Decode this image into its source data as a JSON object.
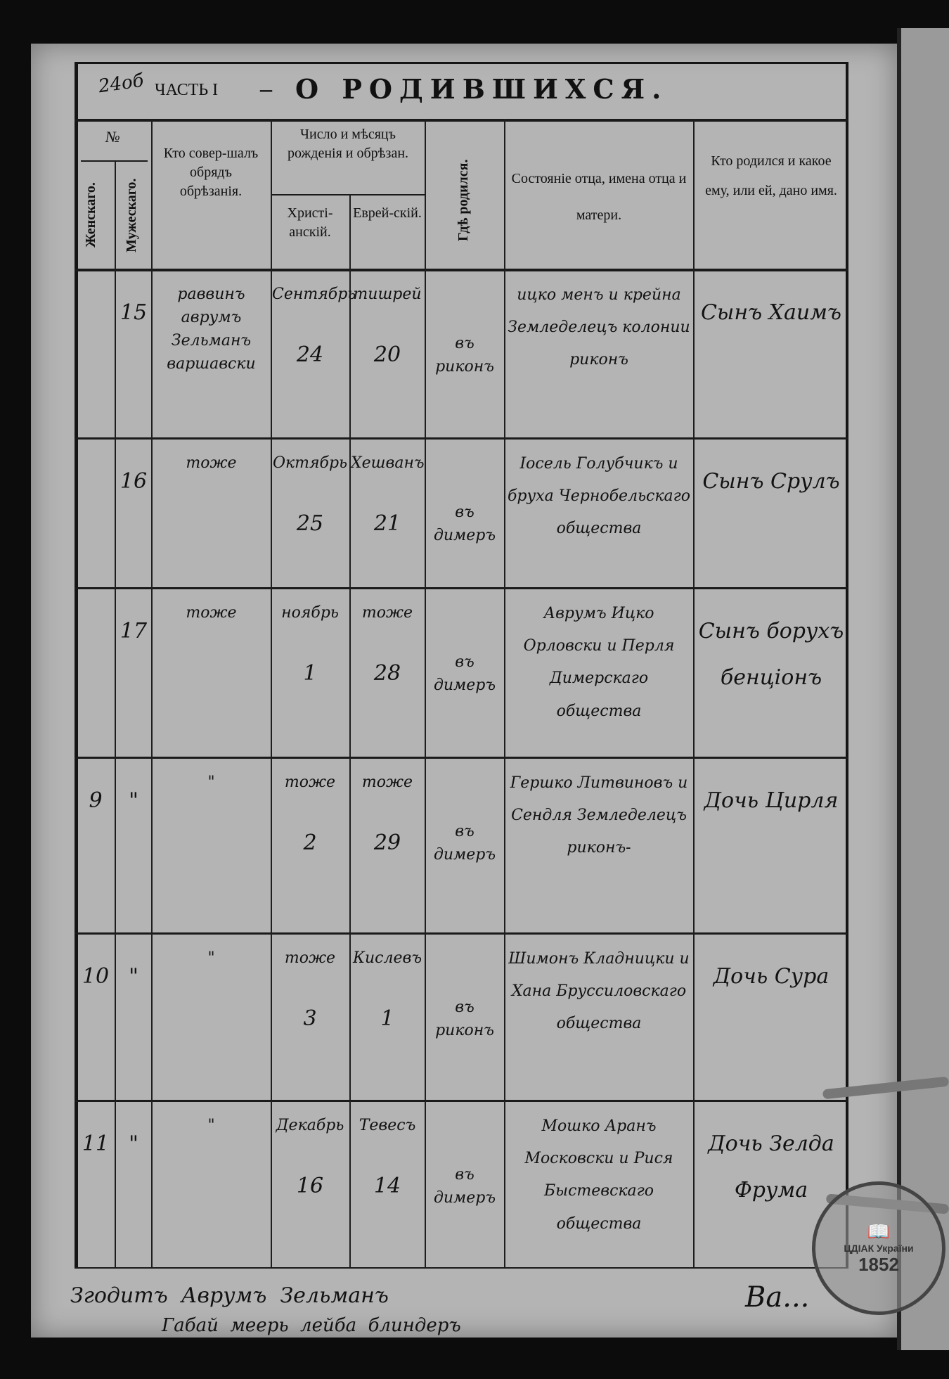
{
  "page_number": "24об",
  "header": {
    "part": "ЧАСТЬ I",
    "dash": "–",
    "title": "О РОДИВШИХСЯ."
  },
  "columns": {
    "number": "№",
    "female": "Женскаго.",
    "male": "Мужескаго.",
    "who_performed": "Кто совер-шалъ обрядъ обрѣзанія.",
    "date": "Число и мѣсяцъ рожденія и обрѣзан.",
    "christian": "Христі-анскій.",
    "jewish": "Еврей-скій.",
    "place": "Гдѣ родился.",
    "parents": "Состояніе отца, имена отца и матери.",
    "child": "Кто родился и какое ему, или ей, дано имя."
  },
  "rows": [
    {
      "female": "",
      "male": "15",
      "who": "раввинъ аврумъ Зельманъ варшавски",
      "chr_month": "Сентябрь",
      "chr_day": "24",
      "jew_month": "тишрей",
      "jew_day": "20",
      "place": "въ риконъ",
      "parents": "ицко менъ и крейна Земледелецъ колонии риконъ",
      "child": "Сынъ Хаимъ"
    },
    {
      "female": "",
      "male": "16",
      "who": "тоже",
      "chr_month": "Октябрь",
      "chr_day": "25",
      "jew_month": "Хешванъ",
      "jew_day": "21",
      "place": "въ димеръ",
      "parents": "Іосель Голубчикъ и бруха Чернобельскаго общества",
      "child": "Сынъ Срулъ"
    },
    {
      "female": "",
      "male": "17",
      "who": "тоже",
      "chr_month": "ноябрь",
      "chr_day": "1",
      "jew_month": "тоже",
      "jew_day": "28",
      "place": "въ димеръ",
      "parents": "Аврумъ Ицко Орловски и Перля Димерскаго общества",
      "child": "Сынъ борухъ бенціонъ"
    },
    {
      "female": "9",
      "male": "\"",
      "who": "\"",
      "chr_month": "тоже",
      "chr_day": "2",
      "jew_month": "тоже",
      "jew_day": "29",
      "place": "въ димеръ",
      "parents": "Гершко Литвиновъ и Сендля Земледелецъ риконъ-",
      "child": "Дочь Цирля"
    },
    {
      "female": "10",
      "male": "\"",
      "who": "\"",
      "chr_month": "тоже",
      "chr_day": "3",
      "jew_month": "Кислевъ",
      "jew_day": "1",
      "place": "въ риконъ",
      "parents": "Шимонъ Кладницки и Хана Бруссиловскаго общества",
      "child": "Дочь Сура"
    },
    {
      "female": "11",
      "male": "\"",
      "who": "\"",
      "chr_month": "Декабрь",
      "chr_day": "16",
      "jew_month": "Тевесъ",
      "jew_day": "14",
      "place": "въ димеръ",
      "parents": "Мошко Аранъ Московски и Рися Быстевскаго общества",
      "child": "Дочь Зелда Фрума"
    }
  ],
  "footer": {
    "line1": "Згодитъ  Аврумъ  Зельманъ",
    "line2": "Габай  меерь  лейба  блиндеръ",
    "signature": "Ва..."
  },
  "stamp": {
    "text": "ЦДІАК України",
    "year": "1852"
  }
}
